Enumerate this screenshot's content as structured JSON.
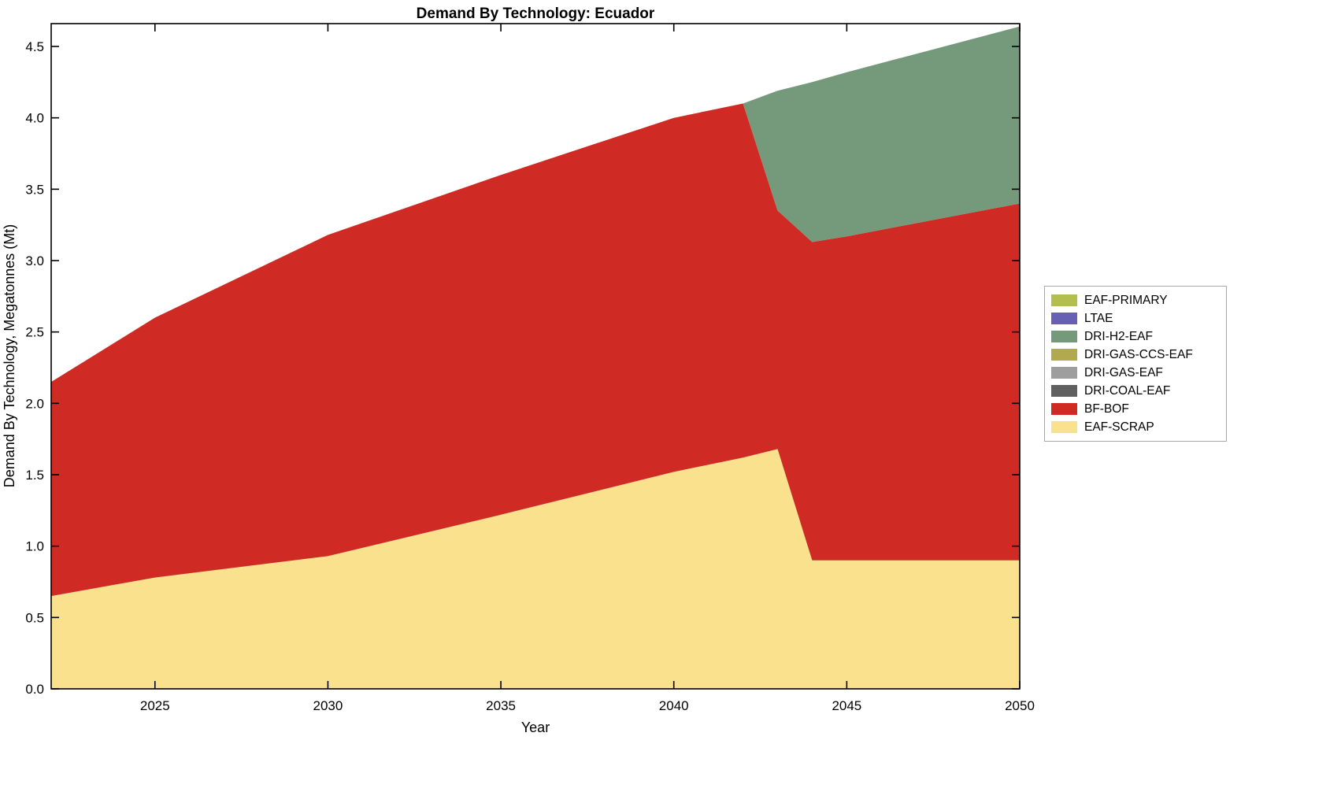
{
  "chart_data": {
    "type": "area",
    "stacked": true,
    "title": "Demand By Technology: Ecuador",
    "xlabel": "Year",
    "ylabel": "Demand By Technology, Megatonnes (Mt)",
    "xlim": [
      2022,
      2050
    ],
    "ylim": [
      0,
      4.66
    ],
    "xticks": [
      2025,
      2030,
      2035,
      2040,
      2045,
      2050
    ],
    "yticks": [
      0,
      0.5,
      1,
      1.5,
      2,
      2.5,
      3,
      3.5,
      4,
      4.5
    ],
    "grid": false,
    "x": [
      2022,
      2025,
      2030,
      2035,
      2040,
      2042,
      2043,
      2044,
      2045,
      2050
    ],
    "series": [
      {
        "name": "EAF-SCRAP",
        "color": "#FAE18E",
        "values": [
          0.65,
          0.78,
          0.93,
          1.22,
          1.52,
          1.62,
          1.68,
          0.9,
          0.9,
          0.9
        ]
      },
      {
        "name": "BF-BOF",
        "color": "#CF2B24",
        "values": [
          1.5,
          1.82,
          2.25,
          2.38,
          2.48,
          2.48,
          1.67,
          2.23,
          2.27,
          2.5
        ]
      },
      {
        "name": "DRI-COAL-EAF",
        "color": "#606060",
        "values": [
          0,
          0,
          0,
          0,
          0,
          0,
          0,
          0,
          0,
          0
        ]
      },
      {
        "name": "DRI-GAS-EAF",
        "color": "#9E9E9E",
        "values": [
          0,
          0,
          0,
          0,
          0,
          0,
          0,
          0,
          0,
          0
        ]
      },
      {
        "name": "DRI-GAS-CCS-EAF",
        "color": "#B1A94E",
        "values": [
          0,
          0,
          0,
          0,
          0,
          0,
          0,
          0,
          0,
          0
        ]
      },
      {
        "name": "DRI-H2-EAF",
        "color": "#74997B",
        "values": [
          0,
          0,
          0,
          0,
          0,
          0,
          0.84,
          1.12,
          1.15,
          1.24
        ]
      },
      {
        "name": "LTAE",
        "color": "#6661B4",
        "values": [
          0,
          0,
          0,
          0,
          0,
          0,
          0,
          0,
          0,
          0
        ]
      },
      {
        "name": "EAF-PRIMARY",
        "color": "#B2BE4E",
        "values": [
          0,
          0,
          0,
          0,
          0,
          0,
          0,
          0,
          0,
          0
        ]
      }
    ],
    "legend": {
      "position": "right-outside",
      "order": [
        "EAF-PRIMARY",
        "LTAE",
        "DRI-H2-EAF",
        "DRI-GAS-CCS-EAF",
        "DRI-GAS-EAF",
        "DRI-COAL-EAF",
        "BF-BOF",
        "EAF-SCRAP"
      ]
    }
  }
}
